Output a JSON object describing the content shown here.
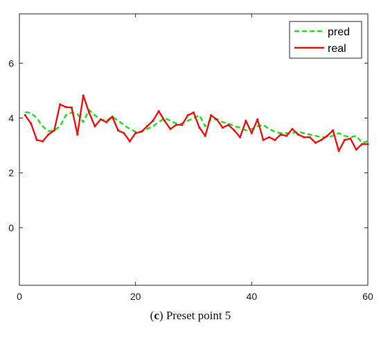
{
  "chart_data": {
    "type": "line",
    "title": "",
    "xlabel": "",
    "ylabel": "",
    "xlim": [
      0,
      60
    ],
    "ylim": [
      -2.1,
      7.8
    ],
    "xticks": [
      0,
      20,
      40,
      60
    ],
    "yticks": [
      0,
      2,
      4,
      6
    ],
    "grid": false,
    "legend_position": "top-right",
    "x": [
      1,
      2,
      3,
      4,
      5,
      6,
      7,
      8,
      9,
      10,
      11,
      12,
      13,
      14,
      15,
      16,
      17,
      18,
      19,
      20,
      21,
      22,
      23,
      24,
      25,
      26,
      27,
      28,
      29,
      30,
      31,
      32,
      33,
      34,
      35,
      36,
      37,
      38,
      39,
      40,
      41,
      42,
      43,
      44,
      45,
      46,
      47,
      48,
      49,
      50,
      51,
      52,
      53,
      54,
      55,
      56,
      57,
      58,
      59,
      60
    ],
    "series": [
      {
        "name": "pred",
        "color": "#22dd22",
        "style": "dashed",
        "values": [
          4.22,
          4.18,
          4.0,
          3.7,
          3.52,
          3.55,
          3.7,
          4.1,
          4.2,
          4.15,
          3.85,
          4.3,
          4.1,
          3.95,
          3.9,
          4.05,
          3.9,
          3.75,
          3.6,
          3.5,
          3.5,
          3.6,
          3.7,
          3.85,
          4.0,
          3.9,
          3.8,
          3.8,
          3.9,
          4.0,
          4.1,
          3.7,
          3.95,
          3.95,
          3.85,
          3.8,
          3.7,
          3.65,
          3.55,
          3.6,
          3.7,
          3.75,
          3.6,
          3.5,
          3.45,
          3.45,
          3.45,
          3.5,
          3.45,
          3.4,
          3.35,
          3.3,
          3.3,
          3.35,
          3.45,
          3.35,
          3.3,
          3.35,
          3.1,
          3.15
        ]
      },
      {
        "name": "real",
        "color": "#ee1111",
        "style": "solid",
        "values": [
          4.1,
          3.8,
          3.2,
          3.15,
          3.4,
          3.55,
          4.5,
          4.4,
          4.38,
          3.4,
          4.82,
          4.2,
          3.7,
          3.95,
          3.85,
          4.05,
          3.55,
          3.45,
          3.15,
          3.45,
          3.5,
          3.7,
          3.9,
          4.25,
          3.9,
          3.6,
          3.75,
          3.75,
          4.1,
          4.2,
          3.65,
          3.35,
          4.1,
          3.95,
          3.65,
          3.75,
          3.55,
          3.3,
          3.9,
          3.45,
          3.95,
          3.2,
          3.3,
          3.2,
          3.4,
          3.35,
          3.6,
          3.4,
          3.3,
          3.3,
          3.1,
          3.2,
          3.35,
          3.55,
          2.8,
          3.2,
          3.25,
          2.85,
          3.05,
          3.05
        ]
      }
    ]
  },
  "caption": {
    "label": "c",
    "text": " Preset point 5"
  }
}
